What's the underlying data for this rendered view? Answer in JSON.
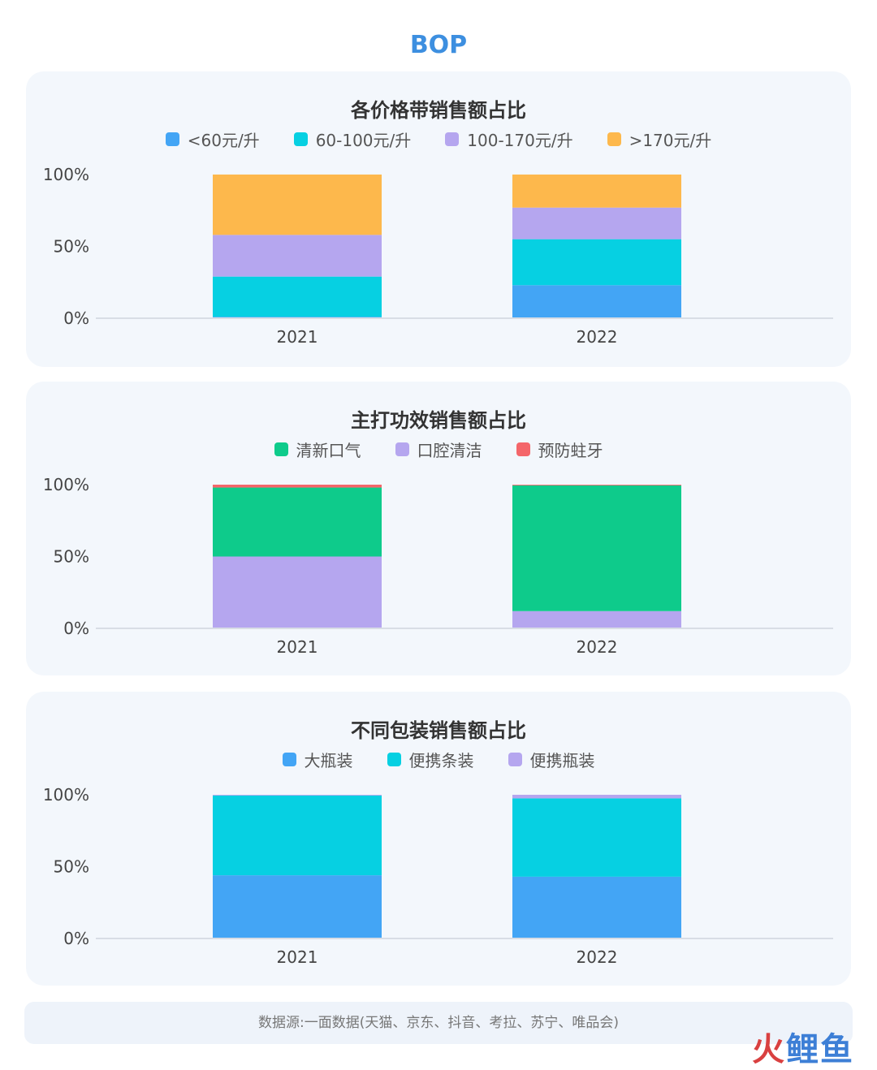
{
  "page": {
    "title": "BOP"
  },
  "colors": {
    "blue": "#43a5f5",
    "cyan": "#06d0e2",
    "purple": "#b5a6ef",
    "orange": "#fdb84c",
    "green": "#0ecb8b",
    "red": "#f4666a",
    "axis_text": "#444444",
    "baseline": "#d8dde5"
  },
  "charts": [
    {
      "title": "各价格带销售额占比",
      "legend": [
        {
          "label": "<60元/升",
          "color": "#43a5f5"
        },
        {
          "label": "60-100元/升",
          "color": "#06d0e2"
        },
        {
          "label": "100-170元/升",
          "color": "#b5a6ef"
        },
        {
          "label": ">170元/升",
          "color": "#fdb84c"
        }
      ]
    },
    {
      "title": "主打功效销售额占比",
      "legend": [
        {
          "label": "清新口气",
          "color": "#0ecb8b"
        },
        {
          "label": "口腔清洁",
          "color": "#b5a6ef"
        },
        {
          "label": "预防蛀牙",
          "color": "#f4666a"
        }
      ]
    },
    {
      "title": "不同包装销售额占比",
      "legend": [
        {
          "label": "大瓶装",
          "color": "#43a5f5"
        },
        {
          "label": "便携条装",
          "color": "#06d0e2"
        },
        {
          "label": "便携瓶装",
          "color": "#b5a6ef"
        }
      ]
    }
  ],
  "chart_data": [
    {
      "type": "bar",
      "stacked": true,
      "title": "各价格带销售额占比",
      "categories": [
        "2021",
        "2022"
      ],
      "yticks": [
        "100%",
        "50%",
        "0%"
      ],
      "ylim": [
        0,
        100
      ],
      "legend_position": "top",
      "grid": false,
      "series": [
        {
          "name": "<60元/升",
          "color": "#43a5f5",
          "values": [
            1,
            23
          ]
        },
        {
          "name": "60-100元/升",
          "color": "#06d0e2",
          "values": [
            28,
            32
          ]
        },
        {
          "name": "100-170元/升",
          "color": "#b5a6ef",
          "values": [
            29,
            22
          ]
        },
        {
          "name": ">170元/升",
          "color": "#fdb84c",
          "values": [
            42,
            23
          ]
        }
      ]
    },
    {
      "type": "bar",
      "stacked": true,
      "title": "主打功效销售额占比",
      "categories": [
        "2021",
        "2022"
      ],
      "yticks": [
        "100%",
        "50%",
        "0%"
      ],
      "ylim": [
        0,
        100
      ],
      "legend_position": "top",
      "grid": false,
      "series": [
        {
          "name": "口腔清洁",
          "color": "#b5a6ef",
          "values": [
            50,
            12
          ]
        },
        {
          "name": "清新口气",
          "color": "#0ecb8b",
          "values": [
            48,
            87.5
          ]
        },
        {
          "name": "预防蛀牙",
          "color": "#f4666a",
          "values": [
            2,
            0.5
          ]
        }
      ]
    },
    {
      "type": "bar",
      "stacked": true,
      "title": "不同包装销售额占比",
      "categories": [
        "2021",
        "2022"
      ],
      "yticks": [
        "100%",
        "50%",
        "0%"
      ],
      "ylim": [
        0,
        100
      ],
      "legend_position": "top",
      "grid": false,
      "series": [
        {
          "name": "大瓶装",
          "color": "#43a5f5",
          "values": [
            44,
            43
          ]
        },
        {
          "name": "便携条装",
          "color": "#06d0e2",
          "values": [
            55.5,
            54.5
          ]
        },
        {
          "name": "便携瓶装",
          "color": "#b5a6ef",
          "values": [
            0.5,
            2.5
          ]
        }
      ]
    }
  ],
  "footer": {
    "source": "数据源:一面数据(天猫、京东、抖音、考拉、苏宁、唯品会)",
    "logo_part1": "火",
    "logo_part2": "鲤",
    "logo_part3": "鱼"
  }
}
